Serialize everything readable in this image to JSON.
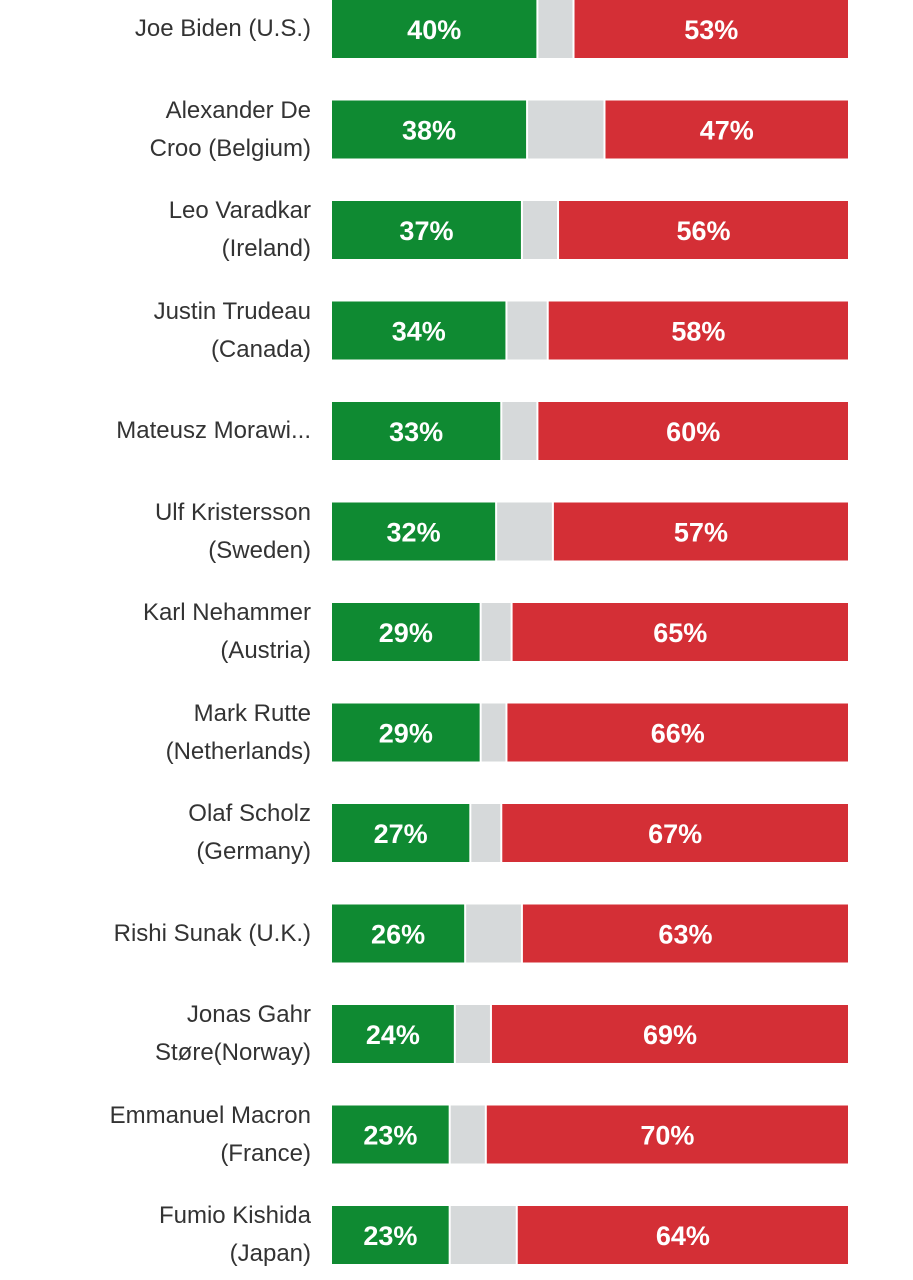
{
  "chart_data": {
    "type": "bar",
    "orientation": "horizontal",
    "stacked": true,
    "categories": [
      "Joe Biden (U.S.)",
      "Alexander De\nCroo (Belgium)",
      "Leo Varadkar\n(Ireland)",
      "Justin Trudeau\n(Canada)",
      "Mateusz Morawi...",
      "Ulf Kristersson\n(Sweden)",
      "Karl Nehammer\n(Austria)",
      "Mark Rutte\n(Netherlands)",
      "Olaf Scholz\n(Germany)",
      "Rishi Sunak (U.K.)",
      "Jonas Gahr\nStøre(Norway)",
      "Emmanuel Macron\n(France)",
      "Fumio Kishida\n(Japan)"
    ],
    "series": [
      {
        "color": "#0f8a32",
        "values": [
          40,
          38,
          37,
          34,
          33,
          32,
          29,
          29,
          27,
          26,
          24,
          23,
          23
        ],
        "value_labels": [
          "40%",
          "38%",
          "37%",
          "34%",
          "33%",
          "32%",
          "29%",
          "29%",
          "27%",
          "26%",
          "24%",
          "23%",
          "23%"
        ]
      },
      {
        "color": "#d6d9da",
        "values": [
          7,
          15,
          7,
          8,
          7,
          11,
          6,
          5,
          6,
          11,
          7,
          7,
          13
        ]
      },
      {
        "color": "#d42f36",
        "values": [
          53,
          47,
          56,
          58,
          60,
          57,
          65,
          66,
          67,
          63,
          69,
          70,
          64
        ],
        "value_labels": [
          "53%",
          "47%",
          "56%",
          "58%",
          "60%",
          "57%",
          "65%",
          "66%",
          "67%",
          "63%",
          "69%",
          "70%",
          "64%"
        ]
      }
    ],
    "xlim": [
      0,
      100
    ]
  }
}
